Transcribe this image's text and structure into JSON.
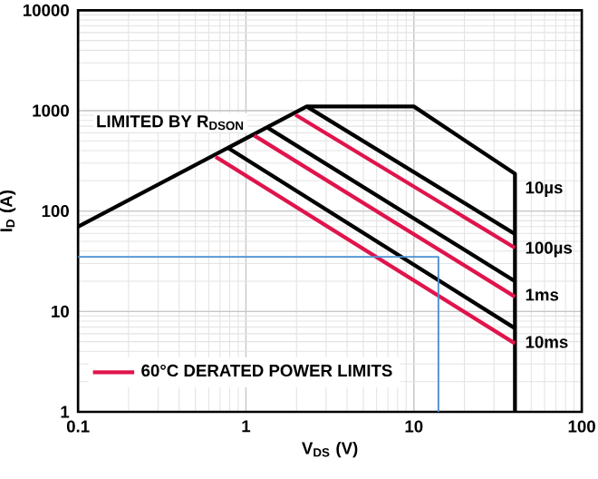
{
  "chart_data": {
    "type": "line",
    "xlabel": "V$_{DS}$ (V)",
    "ylabel": "I$_{D}$ (A)",
    "annotations": [
      "LIMITED BY R$_{DSON}$"
    ],
    "log": "xy",
    "grid": true,
    "legend": "bottom left",
    "marker": "none",
    "line_style": "solid",
    "xlim": [
      0.1,
      100
    ],
    "ylim": [
      1,
      10000
    ],
    "xticks": [
      0.1,
      1,
      10,
      100
    ],
    "yticks": [
      1,
      10,
      100,
      1000,
      10000
    ],
    "series": [
      {
        "name": "10µs",
        "color": "#000000",
        "x": [
          0.1,
          2.3,
          10,
          40,
          40
        ],
        "values": [
          70,
          1100,
          1100,
          235,
          1
        ]
      },
      {
        "name": "100µs",
        "color": "#000000",
        "x": [
          2.3,
          40
        ],
        "values": [
          1100,
          59
        ]
      },
      {
        "name": "60°C DERATED POWER LIMITS",
        "color": "#e0144c",
        "x": [
          1.97,
          40
        ],
        "values": [
          910,
          43
        ]
      },
      {
        "name": "1ms",
        "color": "#000000",
        "x": [
          1.35,
          40
        ],
        "values": [
          675,
          20
        ]
      },
      {
        "color": "#e0144c",
        "x": [
          1.12,
          40
        ],
        "values": [
          565,
          14
        ]
      },
      {
        "name": "10ms",
        "color": "#000000",
        "x": [
          0.78,
          40
        ],
        "values": [
          427,
          6.8
        ]
      },
      {
        "color": "#e0144c",
        "x": [
          0.66,
          40
        ],
        "values": [
          347,
          4.8
        ]
      },
      {
        "color": "#4a90d0",
        "x": [
          0.1,
          14,
          14
        ],
        "values": [
          35,
          35,
          1
        ]
      }
    ]
  }
}
